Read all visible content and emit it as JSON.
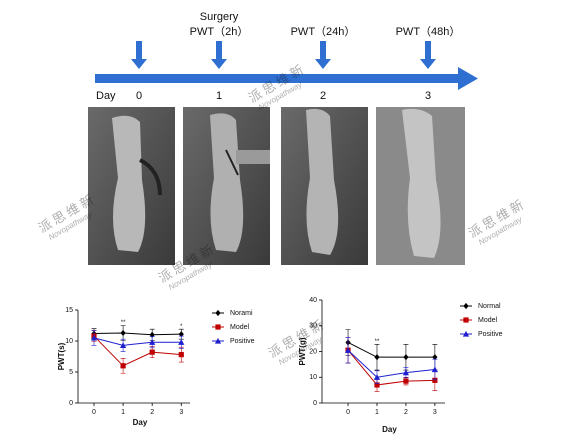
{
  "timeline": {
    "day_label": "Day",
    "days": [
      "0",
      "1",
      "2",
      "3"
    ],
    "events": [
      {
        "day_index": 1,
        "lines": [
          "Surgery",
          "PWT（2h）"
        ]
      },
      {
        "day_index": 2,
        "lines": [
          "PWT（24h）"
        ]
      },
      {
        "day_index": 3,
        "lines": [
          "PWT（48h）"
        ]
      }
    ],
    "arrow_days": [
      0,
      1,
      2,
      3
    ]
  },
  "watermark": {
    "cn": "派思维新",
    "en": "Novopathway"
  },
  "chart_data": [
    {
      "type": "line",
      "x_label": "Day",
      "y_label": "PWT(s)",
      "x": [
        0,
        1,
        2,
        3
      ],
      "xlim": [
        -0.55,
        3.3
      ],
      "xticks": [
        0,
        1,
        2,
        3
      ],
      "ylim": [
        0,
        15
      ],
      "yticks": [
        0,
        5,
        10,
        15
      ],
      "series": [
        {
          "name": "Norami",
          "color": "#000000",
          "marker": "diamond",
          "values": [
            11.2,
            11.3,
            11,
            11.1
          ],
          "errors": [
            0.8,
            1.2,
            0.9,
            0.8
          ]
        },
        {
          "name": "Model",
          "color": "#c00000",
          "marker": "square",
          "values": [
            10.8,
            6,
            8.2,
            7.8
          ],
          "errors": [
            0.9,
            1.2,
            0.9,
            1.2
          ]
        },
        {
          "name": "Positive",
          "color": "#1f1fd0",
          "marker": "triangle",
          "values": [
            10.5,
            9.3,
            9.8,
            9.8
          ],
          "errors": [
            1.2,
            1,
            0.9,
            1
          ]
        }
      ],
      "annotations": [
        {
          "text": "**",
          "x": 1
        },
        {
          "text": "*",
          "x": 3
        }
      ]
    },
    {
      "type": "line",
      "x_label": "Day",
      "y_label": "PWT(g)",
      "x": [
        0,
        1,
        2,
        3
      ],
      "xlim": [
        -0.9,
        3.35
      ],
      "xticks": [
        0,
        1,
        2,
        3
      ],
      "ylim": [
        0,
        40
      ],
      "yticks": [
        0,
        10,
        20,
        30,
        40
      ],
      "series": [
        {
          "name": "Normal",
          "color": "#000000",
          "marker": "diamond",
          "values": [
            23.5,
            17.8,
            17.8,
            17.8
          ],
          "errors": [
            5,
            5,
            5,
            5
          ]
        },
        {
          "name": "Model",
          "color": "#c00000",
          "marker": "square",
          "values": [
            20.5,
            7,
            8.5,
            8.8
          ],
          "errors": [
            5,
            2.5,
            1.5,
            4
          ]
        },
        {
          "name": "Positive",
          "color": "#1f1fd0",
          "marker": "triangle",
          "values": [
            20.5,
            10,
            11.8,
            13
          ],
          "errors": [
            5,
            2.5,
            2,
            4
          ]
        }
      ],
      "annotations": [
        {
          "text": "**",
          "x": 1
        }
      ]
    }
  ]
}
